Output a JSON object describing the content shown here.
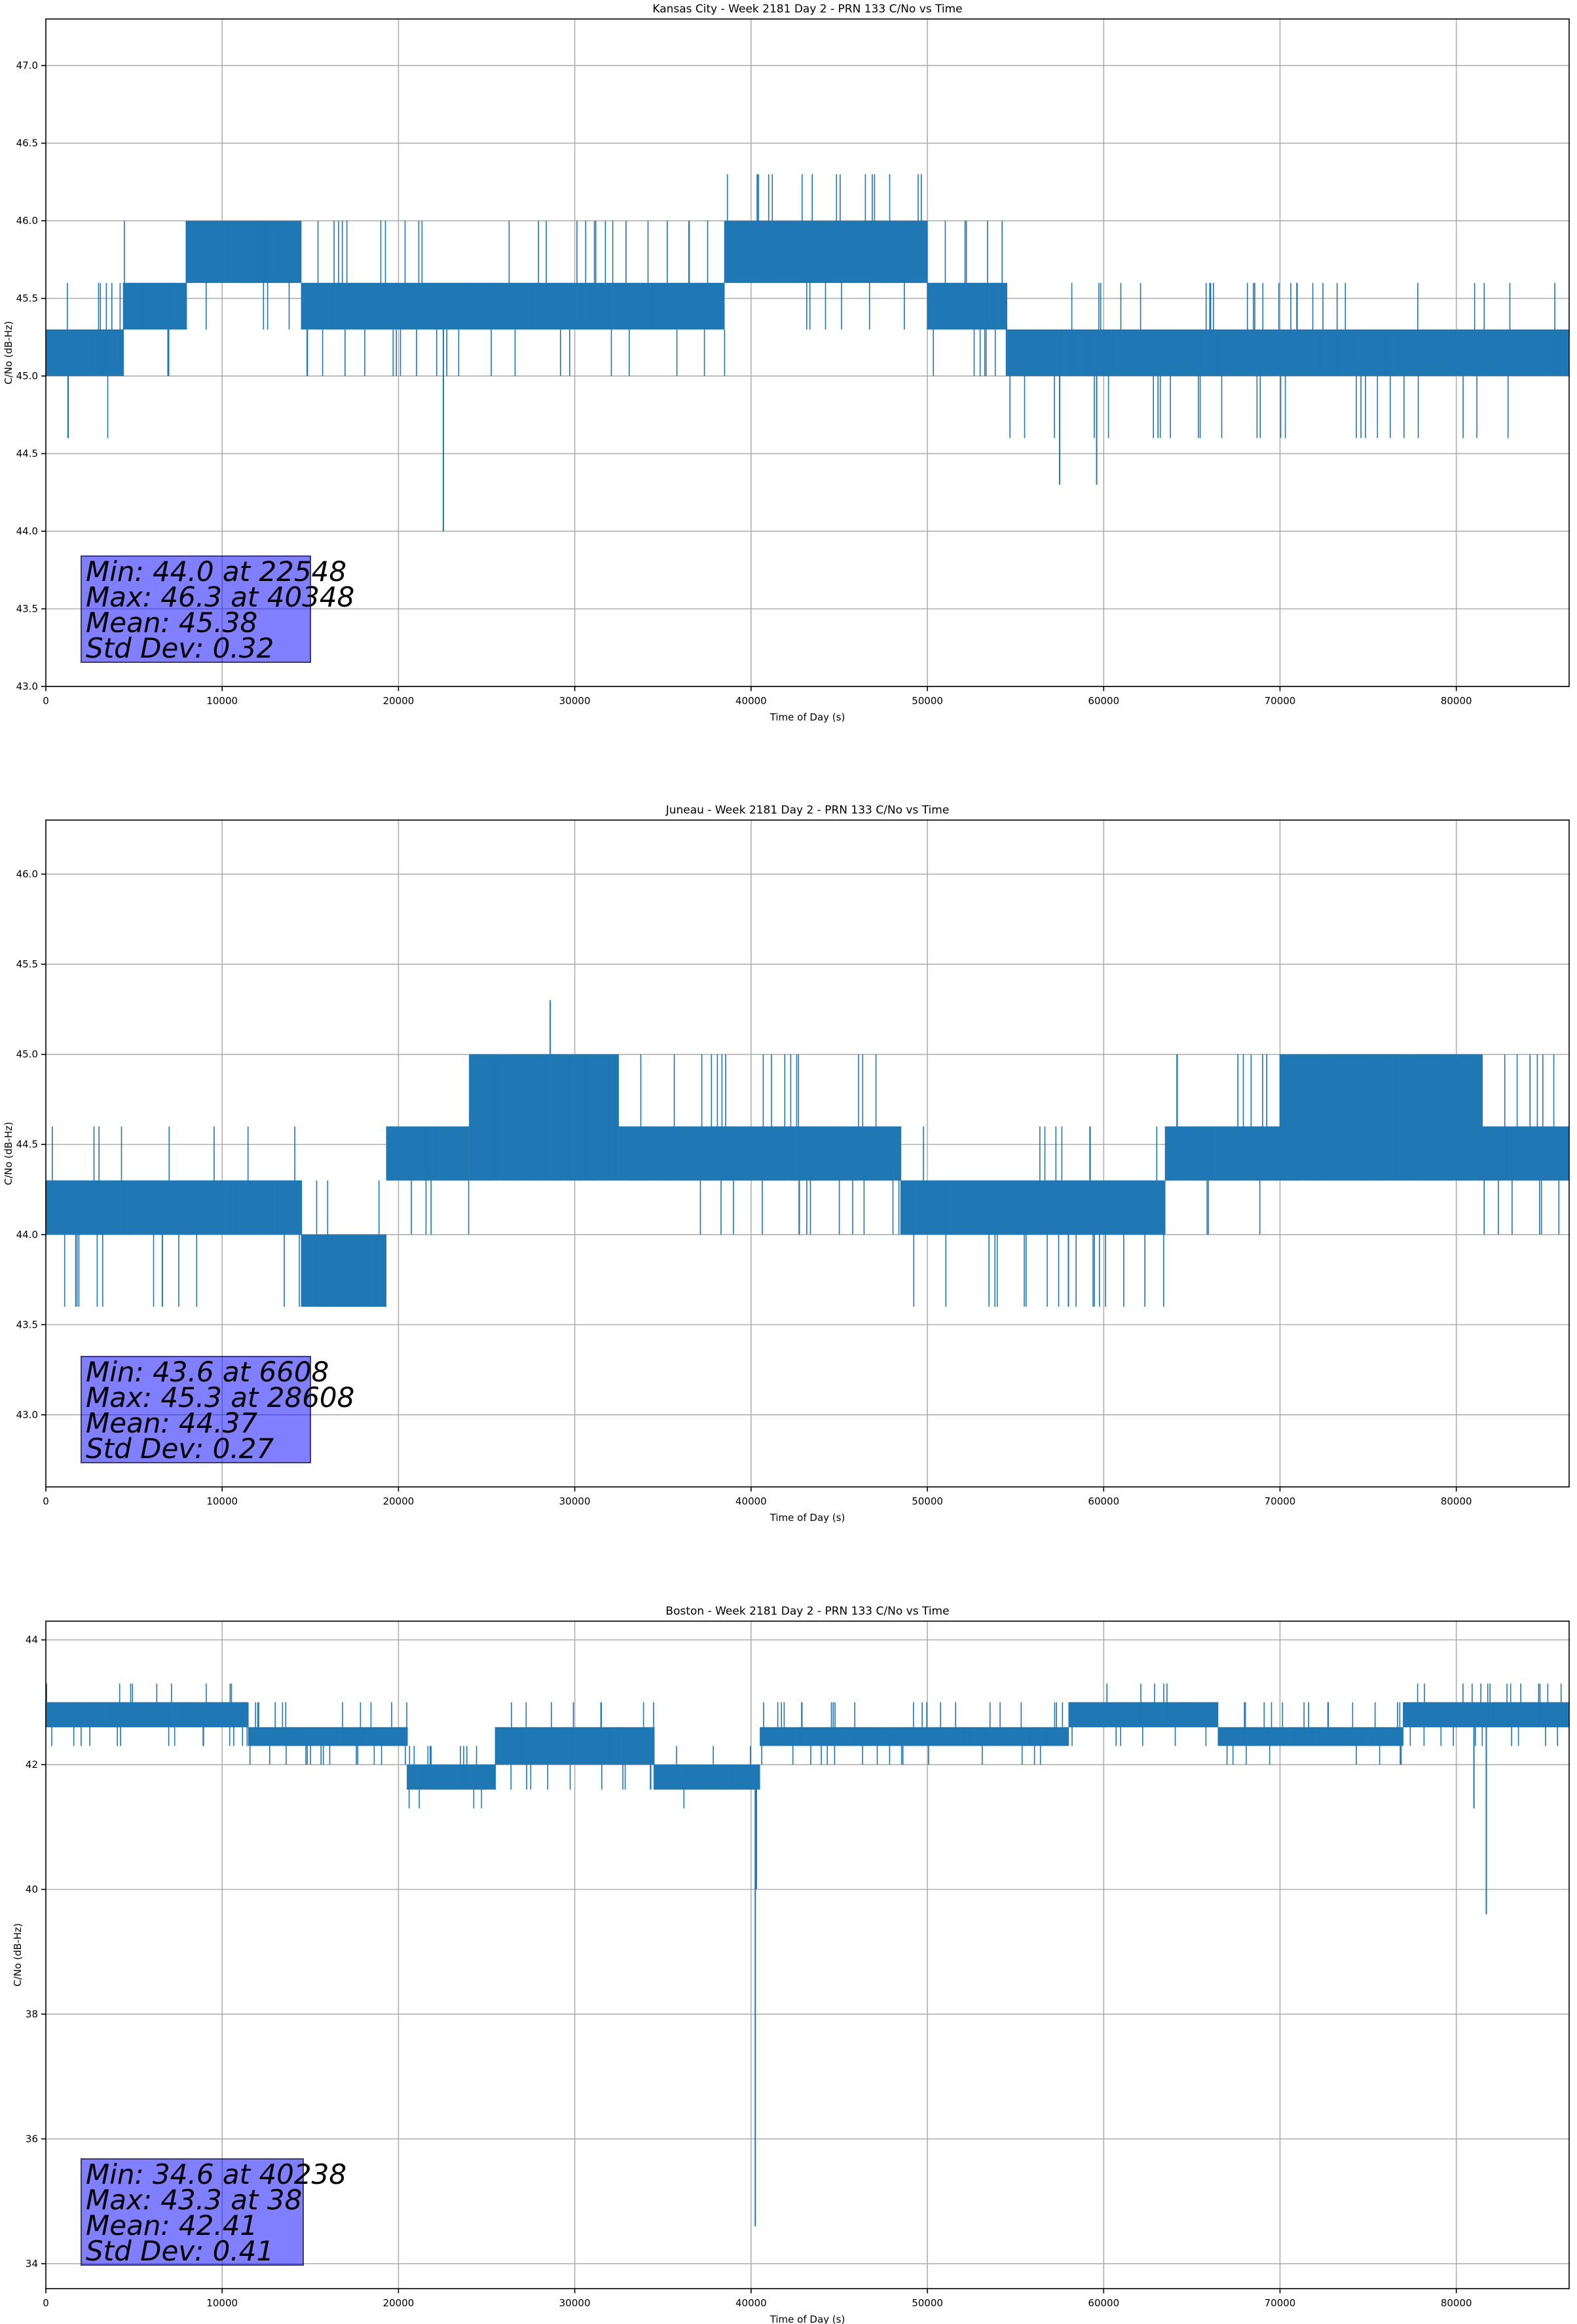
{
  "chart_data": [
    {
      "type": "line",
      "title": "Kansas City - Week 2181 Day 2 - PRN 133 C/No vs Time",
      "xlabel": "Time of Day (s)",
      "ylabel": "C/No (dB-Hz)",
      "xlim": [
        0,
        86400
      ],
      "ylim": [
        43.0,
        47.3
      ],
      "xticks": [
        0,
        10000,
        20000,
        30000,
        40000,
        50000,
        60000,
        70000,
        80000
      ],
      "yticks": [
        43.0,
        43.5,
        44.0,
        44.5,
        45.0,
        45.5,
        46.0,
        46.5,
        47.0
      ],
      "ytick_decimals": 1,
      "grid": true,
      "line_color": "#1f77b4",
      "series": [
        {
          "segments": [
            {
              "x0": 0,
              "x1": 4400,
              "base": 45.0,
              "high": 45.3,
              "density": 0.55,
              "spike_up": 45.6,
              "spike_down": 44.6
            },
            {
              "x0": 4400,
              "x1": 8000,
              "base": 45.3,
              "high": 45.6,
              "density": 0.6,
              "spike_up": 46.0,
              "spike_down": 45.0
            },
            {
              "x0": 8000,
              "x1": 14500,
              "base": 45.6,
              "high": 46.0,
              "density": 0.6,
              "spike_up": 46.0,
              "spike_down": 45.3
            },
            {
              "x0": 14500,
              "x1": 38500,
              "base": 45.3,
              "high": 45.6,
              "density": 0.75,
              "spike_up": 46.0,
              "spike_down": 45.0
            },
            {
              "x0": 38500,
              "x1": 50000,
              "base": 45.6,
              "high": 46.0,
              "density": 0.85,
              "spike_up": 46.3,
              "spike_down": 45.3
            },
            {
              "x0": 50000,
              "x1": 54500,
              "base": 45.3,
              "high": 45.6,
              "density": 0.75,
              "spike_up": 46.0,
              "spike_down": 45.0
            },
            {
              "x0": 54500,
              "x1": 69000,
              "base": 45.0,
              "high": 45.3,
              "density": 0.6,
              "spike_up": 45.6,
              "spike_down": 44.6
            },
            {
              "x0": 69000,
              "x1": 86400,
              "base": 45.0,
              "high": 45.3,
              "density": 0.6,
              "spike_up": 45.6,
              "spike_down": 44.6
            }
          ],
          "extreme_points": [
            {
              "x": 22548,
              "y": 44.0
            },
            {
              "x": 40348,
              "y": 46.3
            },
            {
              "x": 57500,
              "y": 44.3
            },
            {
              "x": 59600,
              "y": 44.3
            }
          ]
        }
      ],
      "stats": {
        "min": "Min: 44.0 at 22548",
        "max": "Max: 46.3 at 40348",
        "mean": "Mean: 45.38",
        "std": "Std Dev: 0.32"
      }
    },
    {
      "type": "line",
      "title": "Juneau - Week 2181 Day 2 - PRN 133 C/No vs Time",
      "xlabel": "Time of Day (s)",
      "ylabel": "C/No (dB-Hz)",
      "xlim": [
        0,
        86400
      ],
      "ylim": [
        42.6,
        46.3
      ],
      "xticks": [
        0,
        10000,
        20000,
        30000,
        40000,
        50000,
        60000,
        70000,
        80000
      ],
      "yticks": [
        43.0,
        43.5,
        44.0,
        44.5,
        45.0,
        45.5,
        46.0
      ],
      "ytick_decimals": 1,
      "grid": true,
      "line_color": "#1f77b4",
      "series": [
        {
          "segments": [
            {
              "x0": 0,
              "x1": 14500,
              "base": 44.0,
              "high": 44.3,
              "density": 0.7,
              "spike_up": 44.6,
              "spike_down": 43.6
            },
            {
              "x0": 14500,
              "x1": 19300,
              "base": 43.6,
              "high": 44.0,
              "density": 0.7,
              "spike_up": 44.3,
              "spike_down": 43.6
            },
            {
              "x0": 19300,
              "x1": 24000,
              "base": 44.3,
              "high": 44.6,
              "density": 0.6,
              "spike_up": 44.6,
              "spike_down": 44.0
            },
            {
              "x0": 24000,
              "x1": 32500,
              "base": 44.3,
              "high": 45.0,
              "density": 0.55,
              "spike_up": 45.0,
              "spike_down": 44.3
            },
            {
              "x0": 32500,
              "x1": 48500,
              "base": 44.3,
              "high": 44.6,
              "density": 0.8,
              "spike_up": 45.0,
              "spike_down": 44.0
            },
            {
              "x0": 48500,
              "x1": 63500,
              "base": 44.0,
              "high": 44.3,
              "density": 0.8,
              "spike_up": 44.6,
              "spike_down": 43.6
            },
            {
              "x0": 63500,
              "x1": 70000,
              "base": 44.3,
              "high": 44.6,
              "density": 0.8,
              "spike_up": 45.0,
              "spike_down": 44.0
            },
            {
              "x0": 70000,
              "x1": 81500,
              "base": 44.3,
              "high": 45.0,
              "density": 0.6,
              "spike_up": 45.0,
              "spike_down": 44.3
            },
            {
              "x0": 81500,
              "x1": 86400,
              "base": 44.3,
              "high": 44.6,
              "density": 0.7,
              "spike_up": 45.0,
              "spike_down": 44.0
            }
          ],
          "extreme_points": [
            {
              "x": 6608,
              "y": 43.6
            },
            {
              "x": 28608,
              "y": 45.3
            },
            {
              "x": 58000,
              "y": 43.6
            }
          ]
        }
      ],
      "stats": {
        "min": "Min: 43.6 at 6608",
        "max": "Max: 45.3 at 28608",
        "mean": "Mean: 44.37",
        "std": "Std Dev: 0.27"
      }
    },
    {
      "type": "line",
      "title": "Boston - Week 2181 Day 2 - PRN 133 C/No vs Time",
      "xlabel": "Time of Day (s)",
      "ylabel": "C/No (dB-Hz)",
      "xlim": [
        0,
        86400
      ],
      "ylim": [
        33.6,
        44.3
      ],
      "xticks": [
        0,
        10000,
        20000,
        30000,
        40000,
        50000,
        60000,
        70000,
        80000
      ],
      "yticks": [
        34,
        36,
        38,
        40,
        42,
        44
      ],
      "ytick_decimals": 0,
      "grid": true,
      "line_color": "#1f77b4",
      "series": [
        {
          "segments": [
            {
              "x0": 0,
              "x1": 11500,
              "base": 42.6,
              "high": 43.0,
              "density": 0.7,
              "spike_up": 43.3,
              "spike_down": 42.3
            },
            {
              "x0": 11500,
              "x1": 20500,
              "base": 42.3,
              "high": 42.6,
              "density": 0.7,
              "spike_up": 43.0,
              "spike_down": 42.0
            },
            {
              "x0": 20500,
              "x1": 25500,
              "base": 41.6,
              "high": 42.0,
              "density": 0.7,
              "spike_up": 42.3,
              "spike_down": 41.3
            },
            {
              "x0": 25500,
              "x1": 34500,
              "base": 42.0,
              "high": 42.6,
              "density": 0.6,
              "spike_up": 43.0,
              "spike_down": 41.6
            },
            {
              "x0": 34500,
              "x1": 40500,
              "base": 41.6,
              "high": 42.0,
              "density": 0.7,
              "spike_up": 42.3,
              "spike_down": 41.3
            },
            {
              "x0": 40500,
              "x1": 58000,
              "base": 42.3,
              "high": 42.6,
              "density": 0.7,
              "spike_up": 43.0,
              "spike_down": 42.0
            },
            {
              "x0": 58000,
              "x1": 66500,
              "base": 42.6,
              "high": 43.0,
              "density": 0.6,
              "spike_up": 43.3,
              "spike_down": 42.3
            },
            {
              "x0": 66500,
              "x1": 77000,
              "base": 42.3,
              "high": 42.6,
              "density": 0.7,
              "spike_up": 43.0,
              "spike_down": 42.0
            },
            {
              "x0": 77000,
              "x1": 86400,
              "base": 42.6,
              "high": 43.0,
              "density": 0.7,
              "spike_up": 43.3,
              "spike_down": 42.3
            }
          ],
          "extreme_points": [
            {
              "x": 38,
              "y": 43.3
            },
            {
              "x": 40238,
              "y": 34.6
            },
            {
              "x": 40300,
              "y": 40.0
            },
            {
              "x": 81700,
              "y": 39.6
            },
            {
              "x": 81000,
              "y": 41.3
            }
          ]
        }
      ],
      "stats": {
        "min": "Min: 34.6 at 40238",
        "max": "Max: 43.3 at 38",
        "mean": "Mean: 42.41",
        "std": "Std Dev: 0.41"
      }
    }
  ]
}
